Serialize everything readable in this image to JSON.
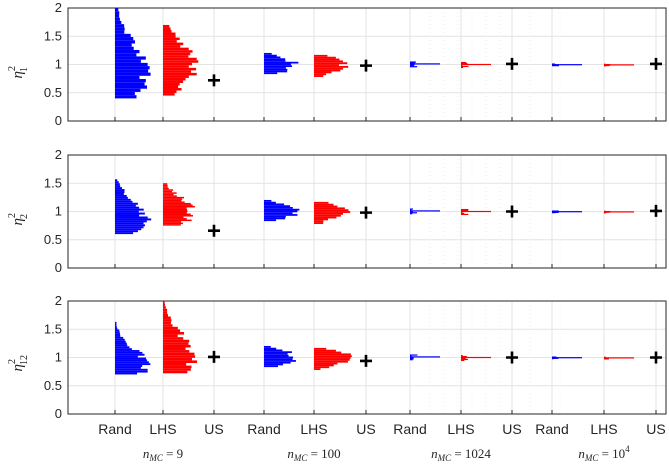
{
  "colors": {
    "rand": "#0000ff",
    "lhs": "#ff0000",
    "us": "#000000"
  },
  "chart_data": {
    "type": "histogram-comparison",
    "ylim": [
      0,
      2
    ],
    "yticks": [
      "0",
      "0.5",
      "1",
      "1.5",
      "2"
    ],
    "groups": [
      {
        "pre": "n",
        "sub": "MC",
        "mid": " = ",
        "value": "9",
        "exp": "",
        "spread": 0.6
      },
      {
        "pre": "n",
        "sub": "MC",
        "mid": " = ",
        "value": "100",
        "exp": "",
        "spread": 0.17
      },
      {
        "pre": "n",
        "sub": "MC",
        "mid": " = ",
        "value": "1024",
        "exp": "",
        "spread": 0.045
      },
      {
        "pre": "n",
        "sub": "MC",
        "mid": " = ",
        "value": "10",
        "exp": "4",
        "spread": 0.015
      }
    ],
    "methods": [
      "Rand",
      "LHS",
      "US"
    ],
    "panels": [
      {
        "ylabel": {
          "base": "η",
          "sup": "2",
          "sub": "1"
        },
        "us": [
          0.72,
          0.98,
          1.01,
          1.01
        ],
        "rand_range": [
          0.4,
          2.0
        ],
        "lhs_range": [
          0.45,
          1.7
        ]
      },
      {
        "ylabel": {
          "base": "η",
          "sup": "2",
          "sub": "2"
        },
        "us": [
          0.66,
          0.98,
          1.0,
          1.01
        ],
        "rand_range": [
          0.6,
          1.57
        ],
        "lhs_range": [
          0.75,
          1.5
        ]
      },
      {
        "ylabel": {
          "base": "η",
          "sup": "2",
          "sub": "12"
        },
        "us": [
          1.01,
          0.94,
          1.0,
          1.0
        ],
        "rand_range": [
          0.7,
          1.63
        ],
        "lhs_range": [
          0.72,
          2.0
        ]
      }
    ]
  }
}
